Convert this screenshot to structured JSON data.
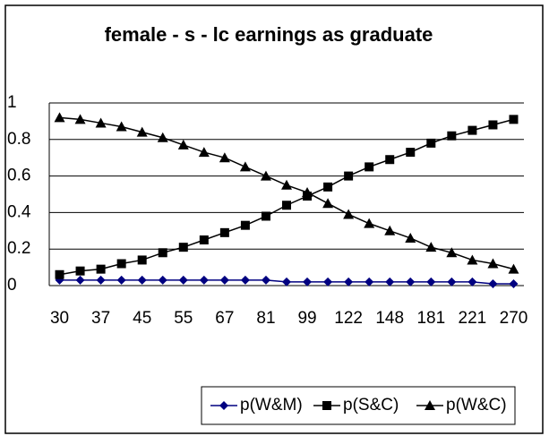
{
  "chart_data": {
    "type": "line",
    "title": "female - s - lc earnings as graduate",
    "categories": [
      30,
      null,
      37,
      null,
      45,
      null,
      55,
      null,
      67,
      null,
      81,
      null,
      99,
      null,
      122,
      null,
      148,
      null,
      181,
      null,
      221,
      null,
      270
    ],
    "series": [
      {
        "name": "p(W&M)",
        "color": "#000080",
        "marker": "diamond",
        "values": [
          0.03,
          0.03,
          0.03,
          0.03,
          0.03,
          0.03,
          0.03,
          0.03,
          0.03,
          0.03,
          0.03,
          0.02,
          0.02,
          0.02,
          0.02,
          0.02,
          0.02,
          0.02,
          0.02,
          0.02,
          0.02,
          0.01,
          0.01
        ]
      },
      {
        "name": "p(S&C)",
        "color": "#000000",
        "marker": "square",
        "values": [
          0.06,
          0.08,
          0.09,
          0.12,
          0.14,
          0.18,
          0.21,
          0.25,
          0.29,
          0.33,
          0.38,
          0.44,
          0.49,
          0.54,
          0.6,
          0.65,
          0.69,
          0.73,
          0.78,
          0.82,
          0.85,
          0.88,
          0.91
        ]
      },
      {
        "name": "p(W&C)",
        "color": "#000000",
        "marker": "triangle",
        "values": [
          0.92,
          0.91,
          0.89,
          0.87,
          0.84,
          0.81,
          0.77,
          0.73,
          0.7,
          0.65,
          0.6,
          0.55,
          0.51,
          0.45,
          0.39,
          0.34,
          0.3,
          0.26,
          0.21,
          0.18,
          0.14,
          0.12,
          0.09
        ]
      }
    ],
    "ylim": [
      0,
      1
    ],
    "yticks": [
      0,
      0.2,
      0.4,
      0.6,
      0.8,
      1
    ],
    "grid": true,
    "legend": "bottom"
  }
}
